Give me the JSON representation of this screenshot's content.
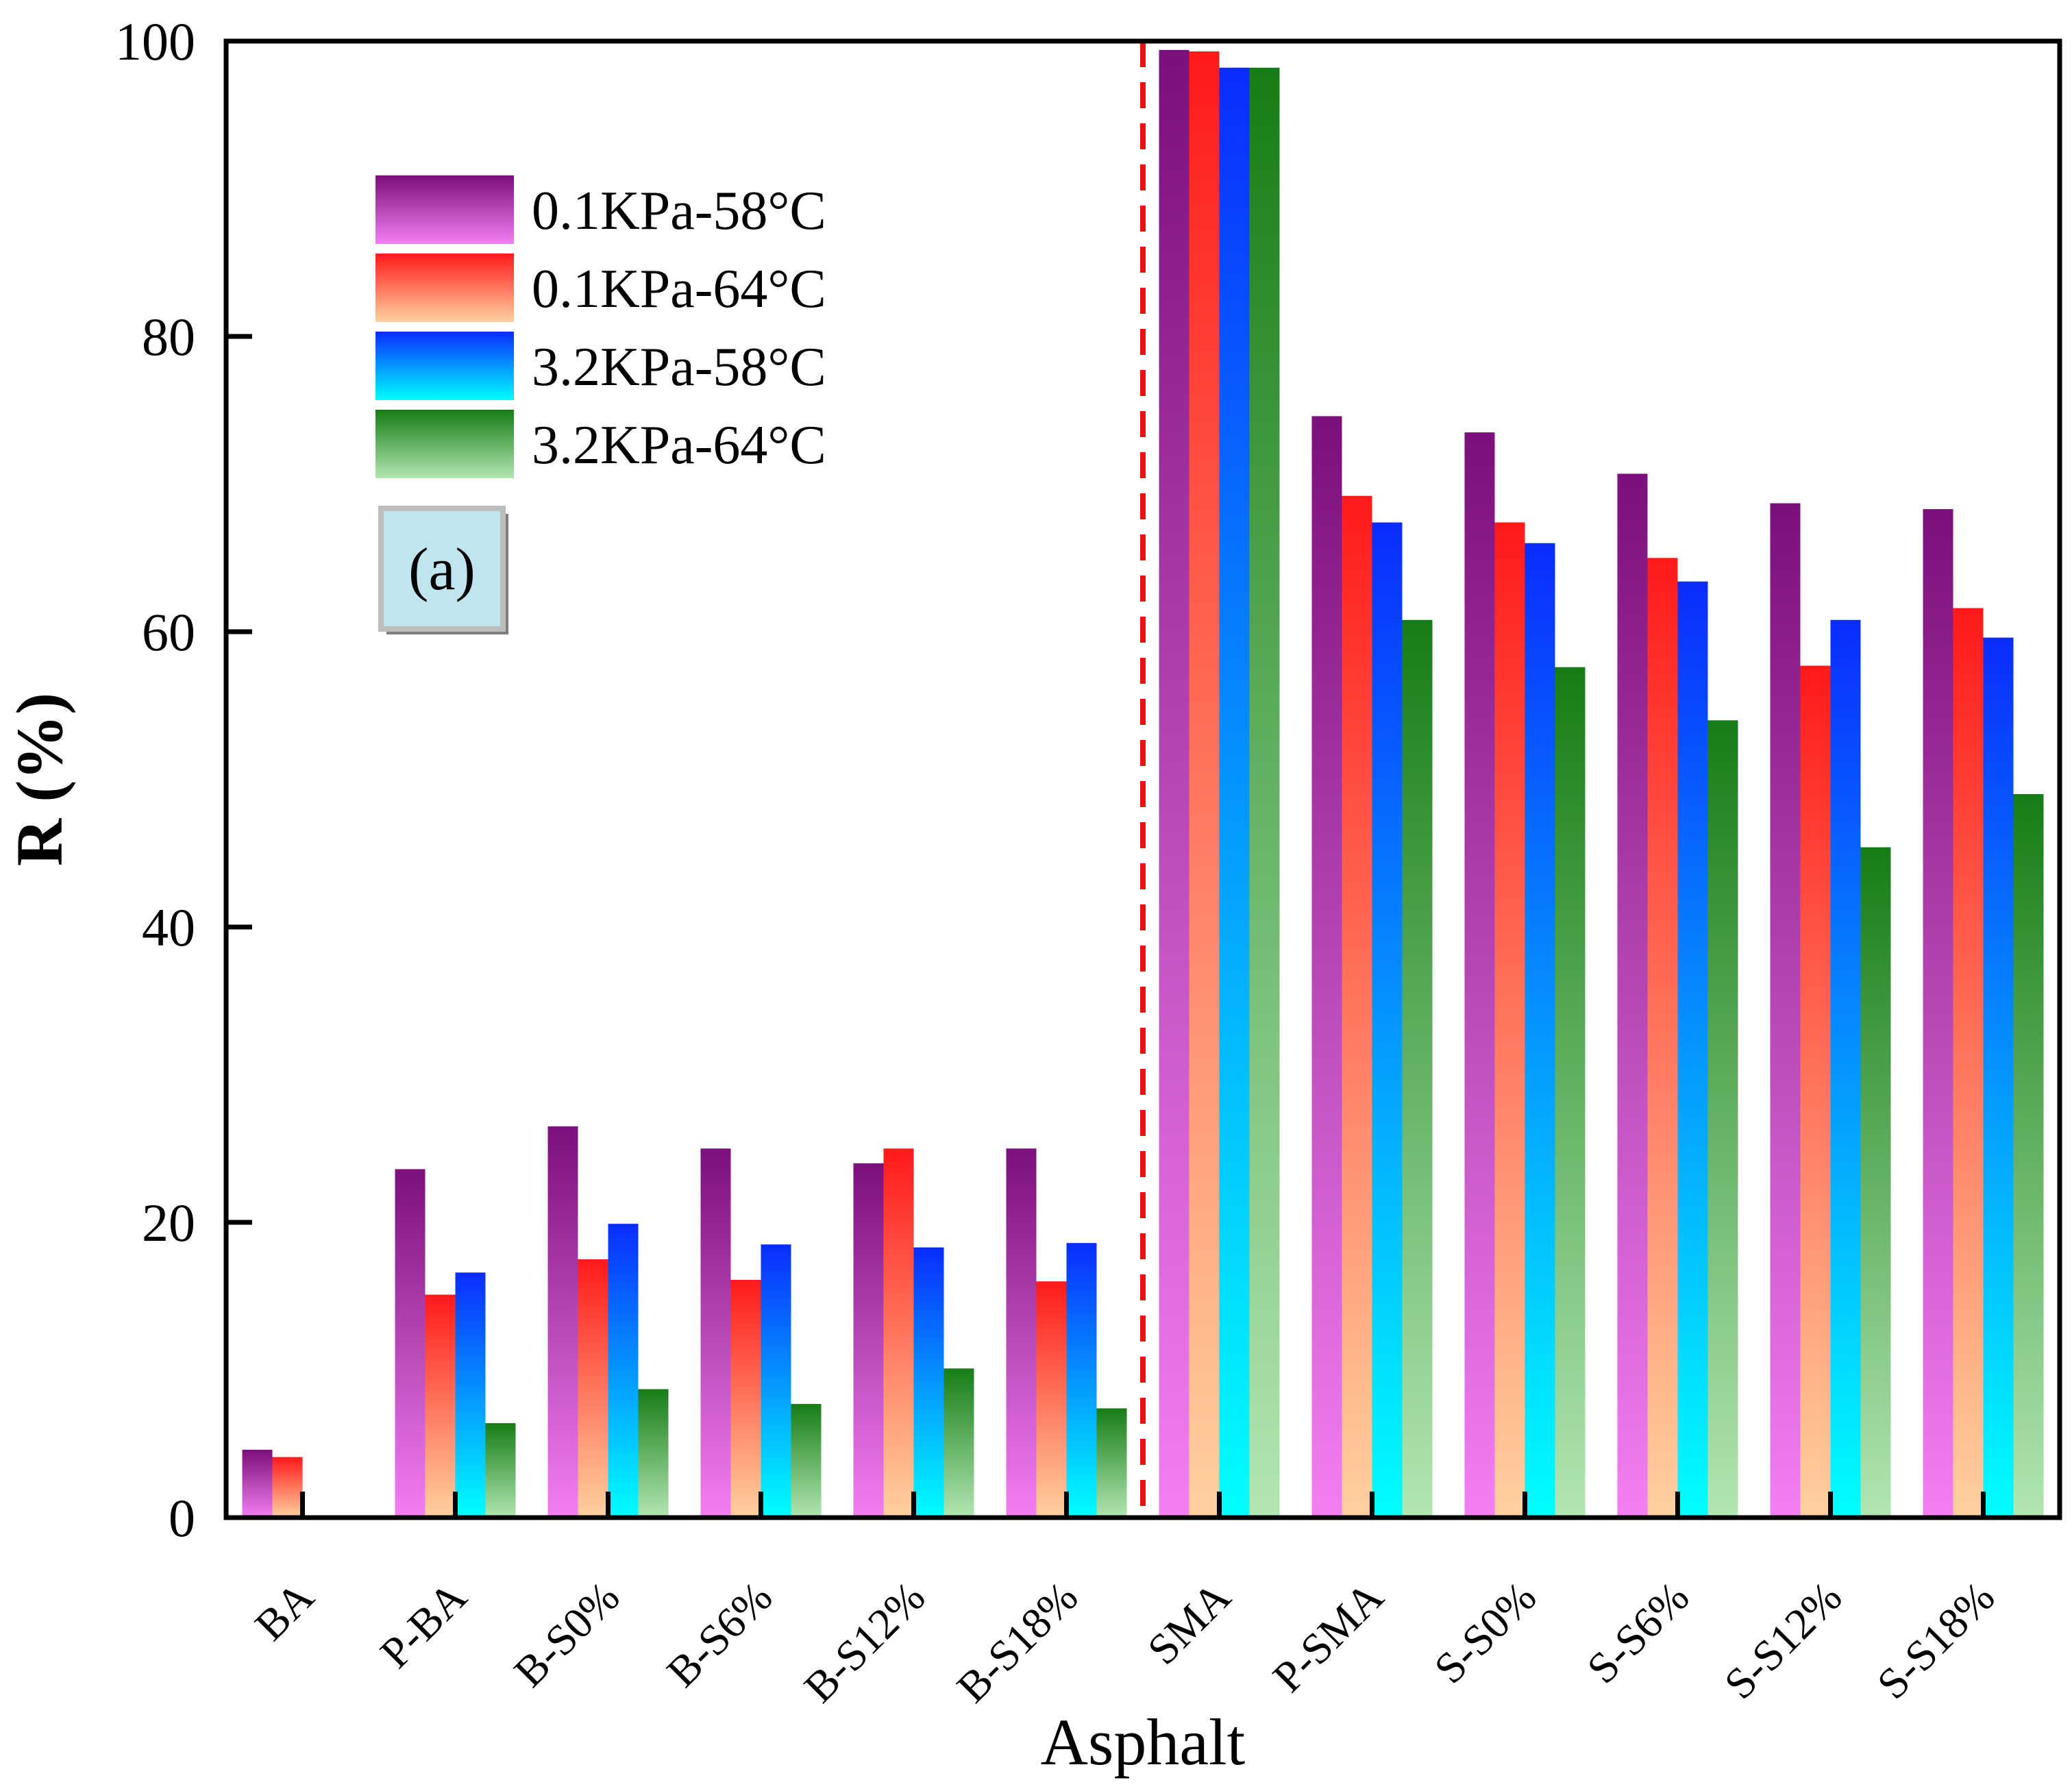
{
  "chart_data": {
    "type": "bar",
    "xlabel": "Asphalt",
    "ylabel": "R (%)",
    "ylim": [
      0,
      100
    ],
    "yticks": [
      "0",
      "20",
      "40",
      "60",
      "80",
      "100"
    ],
    "grid": false,
    "legend_position": "top-left",
    "panel_label": "(a)",
    "categories": [
      "BA",
      "P-BA",
      "B-S0%",
      "B-S6%",
      "B-S12%",
      "B-S18%",
      "SMA",
      "P-SMA",
      "S-S0%",
      "S-S6%",
      "S-S12%",
      "S-S18%"
    ],
    "series": [
      {
        "name": "0.1KPa-58°C",
        "values": [
          4.6,
          23.6,
          26.5,
          25.0,
          24.0,
          25.0,
          99.4,
          74.6,
          73.5,
          70.7,
          68.7,
          68.3
        ],
        "color_top": "#7b0f7b",
        "color_bottom": "#f37ff3"
      },
      {
        "name": "0.1KPa-64°C",
        "values": [
          4.1,
          15.1,
          17.5,
          16.1,
          25.0,
          16.0,
          99.3,
          69.2,
          67.4,
          65.0,
          57.7,
          61.6
        ],
        "color_top": "#ff1a1a",
        "color_bottom": "#ffd1a0"
      },
      {
        "name": "3.2KPa-58°C",
        "values": [
          0,
          16.6,
          19.9,
          18.5,
          18.3,
          18.6,
          98.2,
          67.4,
          66.0,
          63.4,
          60.8,
          59.6
        ],
        "color_top": "#0a2cff",
        "color_bottom": "#00ffff"
      },
      {
        "name": "3.2KPa-64°C",
        "values": [
          0,
          6.4,
          8.7,
          7.7,
          10.1,
          7.4,
          98.2,
          60.8,
          57.6,
          54.0,
          45.4,
          49.0
        ],
        "color_top": "#167d16",
        "color_bottom": "#b2e6b2"
      }
    ],
    "divider": {
      "after_category_index": 5,
      "style": "dashed",
      "color": "#ee1111"
    }
  }
}
